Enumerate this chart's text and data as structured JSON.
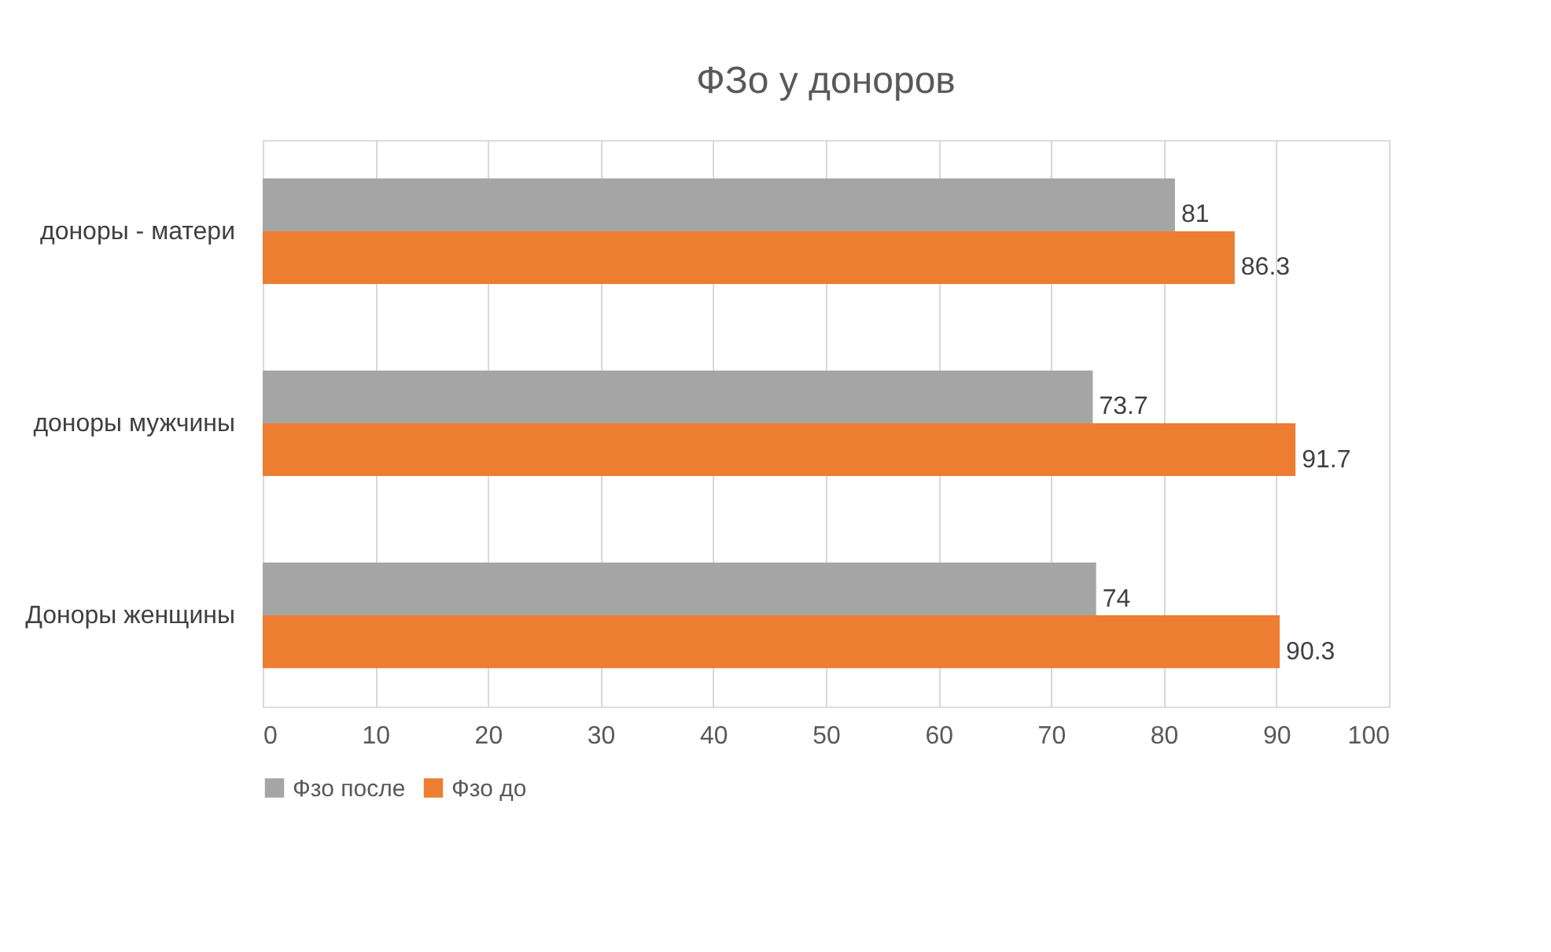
{
  "chart_data": {
    "type": "bar",
    "orientation": "horizontal",
    "title": "ФЗо у доноров",
    "categories": [
      "доноры - матери",
      "доноры мужчины",
      "Доноры женщины"
    ],
    "series": [
      {
        "name": "Фзо после",
        "color": "#a5a5a5",
        "values": [
          81,
          73.7,
          74
        ]
      },
      {
        "name": "Фзо до",
        "color": "#ed7d31",
        "values": [
          86.3,
          91.7,
          90.3
        ]
      }
    ],
    "xlim": [
      0,
      100
    ],
    "xticks": [
      0,
      10,
      20,
      30,
      40,
      50,
      60,
      70,
      80,
      90,
      100
    ],
    "grid": "x",
    "legend": "bottom",
    "data_labels": true
  }
}
